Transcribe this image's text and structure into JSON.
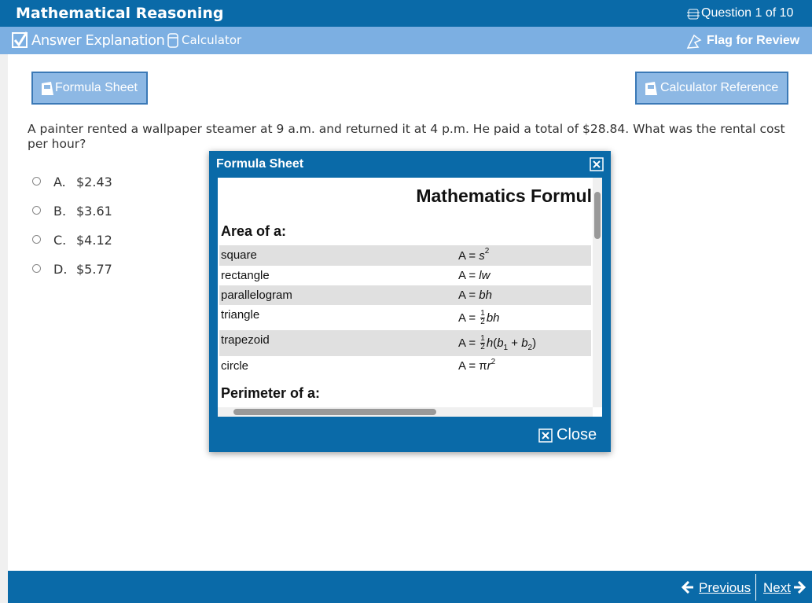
{
  "header": {
    "title": "Mathematical Reasoning",
    "progress": "Question 1 of 10"
  },
  "toolbar": {
    "answer_explanation": "Answer Explanation",
    "calculator": "Calculator",
    "flag": "Flag for Review"
  },
  "buttons": {
    "formula_sheet": "Formula Sheet",
    "calculator_reference": "Calculator Reference"
  },
  "question": {
    "text": "A painter rented a wallpaper steamer at 9 a.m. and returned it at 4 p.m. He paid a total of $28.84. What was the rental cost per hour?",
    "options": [
      {
        "letter": "A.",
        "text": "$2.43"
      },
      {
        "letter": "B.",
        "text": "$3.61"
      },
      {
        "letter": "C.",
        "text": "$4.12"
      },
      {
        "letter": "D.",
        "text": "$5.77"
      }
    ]
  },
  "modal": {
    "title": "Formula Sheet",
    "heading": "Mathematics Formul",
    "sections": [
      {
        "title": "Area of a:",
        "rows": [
          {
            "shape": "square",
            "formula": [
              {
                "text": "A = "
              },
              {
                "italic": "s"
              },
              {
                "sup": "2"
              }
            ]
          },
          {
            "shape": "rectangle",
            "formula": [
              {
                "text": "A = "
              },
              {
                "italic": "lw"
              }
            ]
          },
          {
            "shape": "parallelogram",
            "formula": [
              {
                "text": "A = "
              },
              {
                "italic": "bh"
              }
            ]
          },
          {
            "shape": "triangle",
            "formula": [
              {
                "text": "A = "
              },
              {
                "frac": [
                  "1",
                  "2"
                ]
              },
              {
                "italic": "bh"
              }
            ]
          },
          {
            "shape": "trapezoid",
            "formula": [
              {
                "text": "A = "
              },
              {
                "frac": [
                  "1",
                  "2"
                ]
              },
              {
                "italic": "h"
              },
              {
                "text": "("
              },
              {
                "italic": "b"
              },
              {
                "sub": "1"
              },
              {
                "text": " + "
              },
              {
                "italic": "b"
              },
              {
                "sub": "2"
              },
              {
                "text": ")"
              }
            ]
          },
          {
            "shape": "circle",
            "formula": [
              {
                "text": "A = π"
              },
              {
                "italic": "r"
              },
              {
                "sup": "2"
              }
            ]
          }
        ]
      },
      {
        "title": "Perimeter of a:",
        "rows": []
      }
    ],
    "close": "Close"
  },
  "footer": {
    "previous": "Previous",
    "next": "Next"
  }
}
